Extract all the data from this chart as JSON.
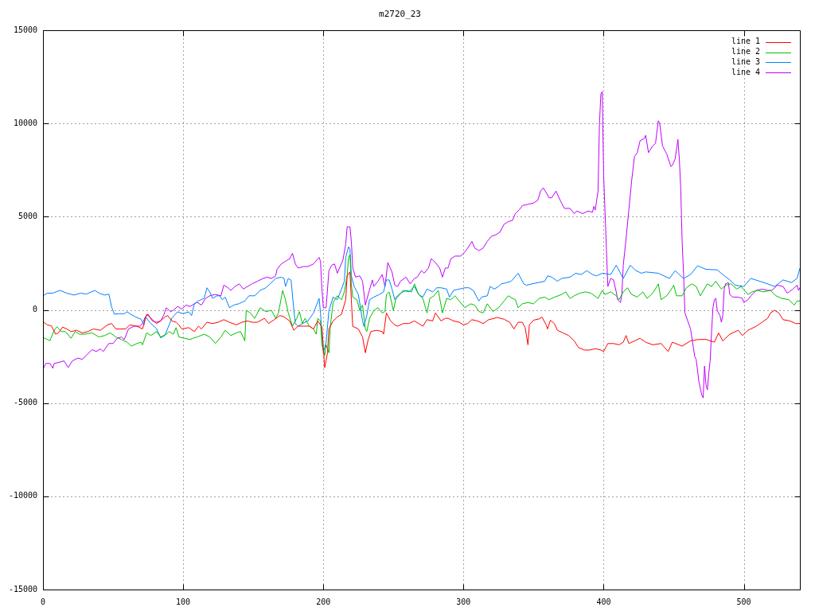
{
  "chart_data": {
    "type": "line",
    "title": "m2720_23",
    "xlim": [
      0,
      540
    ],
    "ylim": [
      -15000,
      15000
    ],
    "xticks": [
      0,
      100,
      200,
      300,
      400,
      500
    ],
    "yticks": [
      -15000,
      -10000,
      -5000,
      0,
      5000,
      10000,
      15000
    ],
    "grid": true,
    "legend": "top right",
    "series": [
      {
        "name": "line 1",
        "color": "#ff0000",
        "x": [
          0,
          3,
          6,
          9,
          11,
          14,
          17,
          20,
          24,
          28,
          32,
          36,
          41,
          46,
          49,
          52,
          55,
          59,
          62,
          67,
          71,
          74,
          76,
          79,
          81,
          84,
          87,
          89,
          92,
          95,
          97,
          99,
          104,
          108,
          111,
          113,
          117,
          121,
          125,
          129,
          133,
          138,
          142,
          146,
          149,
          153,
          158,
          161,
          165,
          169,
          172,
          176,
          179,
          182,
          186,
          190,
          193,
          196,
          199,
          200,
          201,
          203,
          204,
          207,
          210,
          213,
          216,
          217,
          219,
          220,
          221,
          225,
          228,
          230,
          232,
          234,
          238,
          242,
          243,
          245,
          248,
          251,
          253,
          257,
          261,
          265,
          268,
          271,
          274,
          278,
          280,
          284,
          287,
          289,
          293,
          297,
          300,
          303,
          306,
          310,
          314,
          318,
          322,
          324,
          329,
          333,
          336,
          339,
          342,
          344,
          346,
          347,
          350,
          354,
          356,
          359,
          360,
          362,
          365,
          367,
          371,
          375,
          379,
          382,
          386,
          390,
          394,
          398,
          400,
          403,
          407,
          411,
          414,
          416,
          418,
          422,
          426,
          430,
          435,
          441,
          446,
          449,
          456,
          462,
          467,
          473,
          479,
          482,
          485,
          490,
          496,
          499,
          503,
          509,
          513,
          517,
          519,
          522,
          525,
          528,
          533,
          537,
          540
        ],
        "values": [
          -630,
          -800,
          -850,
          -1300,
          -1230,
          -920,
          -1020,
          -1160,
          -1090,
          -1230,
          -1160,
          -1020,
          -1090,
          -800,
          -730,
          -1020,
          -1020,
          -1020,
          -800,
          -870,
          -1020,
          -230,
          -370,
          -590,
          -730,
          -590,
          -370,
          -300,
          -590,
          -660,
          -800,
          -1020,
          -950,
          -1160,
          -870,
          -1020,
          -660,
          -730,
          -660,
          -520,
          -660,
          -800,
          -660,
          -590,
          -660,
          -660,
          -450,
          -730,
          -520,
          -300,
          -370,
          -590,
          -1090,
          -870,
          -870,
          -870,
          -1020,
          -590,
          -900,
          -2010,
          -3100,
          -2300,
          -1020,
          -590,
          -380,
          -230,
          550,
          1830,
          2040,
          550,
          -880,
          -1020,
          -1450,
          -2300,
          -1590,
          -1160,
          -1090,
          -1160,
          -1300,
          -160,
          -590,
          -800,
          -870,
          -730,
          -730,
          -590,
          -730,
          -870,
          -520,
          -590,
          -160,
          -590,
          -450,
          -450,
          -590,
          -660,
          -800,
          -730,
          -520,
          -590,
          -730,
          -520,
          -450,
          -400,
          -500,
          -660,
          -1020,
          -660,
          -660,
          -950,
          -1870,
          -800,
          -550,
          -480,
          -380,
          -800,
          -1020,
          -550,
          -750,
          -1090,
          -1230,
          -1370,
          -1660,
          -2010,
          -2150,
          -2150,
          -2080,
          -2150,
          -2230,
          -1800,
          -1800,
          -1870,
          -1730,
          -1370,
          -1800,
          -1660,
          -1520,
          -1730,
          -1870,
          -1800,
          -2230,
          -1730,
          -1940,
          -1660,
          -1590,
          -1580,
          -1730,
          -1230,
          -1660,
          -1300,
          -1090,
          -1370,
          -1090,
          -870,
          -660,
          -450,
          -160,
          -20,
          -160,
          -520,
          -590,
          -730,
          -730
        ]
      },
      {
        "name": "line 2",
        "color": "#00c000",
        "x": [
          0,
          5,
          8,
          10,
          13,
          16,
          20,
          23,
          26,
          30,
          35,
          40,
          44,
          48,
          52,
          56,
          60,
          63,
          67,
          70,
          71,
          74,
          77,
          81,
          84,
          88,
          90,
          93,
          95,
          97,
          101,
          105,
          107,
          110,
          115,
          119,
          123,
          127,
          130,
          134,
          138,
          141,
          144,
          145,
          148,
          151,
          155,
          159,
          163,
          166,
          168,
          171,
          173,
          175,
          178,
          181,
          183,
          185,
          187,
          190,
          193,
          195,
          196,
          198,
          199,
          201,
          202,
          204,
          205,
          207,
          210,
          213,
          215,
          217,
          218,
          219,
          220,
          221,
          224,
          226,
          228,
          230,
          231,
          233,
          236,
          239,
          242,
          244,
          245,
          247,
          250,
          252,
          255,
          259,
          263,
          265,
          268,
          271,
          274,
          276,
          279,
          282,
          285,
          288,
          291,
          294,
          297,
          301,
          305,
          308,
          311,
          314,
          317,
          321,
          325,
          329,
          332,
          335,
          337,
          339,
          342,
          346,
          350,
          354,
          358,
          361,
          365,
          370,
          373,
          376,
          379,
          383,
          387,
          391,
          396,
          399,
          401,
          405,
          409,
          411,
          414,
          417,
          420,
          424,
          428,
          431,
          435,
          438,
          439,
          441,
          445,
          449,
          450,
          452,
          456,
          459,
          463,
          466,
          469,
          474,
          477,
          480,
          484,
          487,
          491,
          495,
          498,
          503,
          506,
          510,
          514,
          519,
          523,
          527,
          532,
          536,
          538,
          540
        ],
        "values": [
          -1470,
          -1650,
          -1090,
          -900,
          -1160,
          -1160,
          -1520,
          -1160,
          -1300,
          -1300,
          -1230,
          -1450,
          -1370,
          -1230,
          -1450,
          -1590,
          -1730,
          -1940,
          -1800,
          -1730,
          -1870,
          -1230,
          -1370,
          -1160,
          -1450,
          -1300,
          -1160,
          -1300,
          -950,
          -1450,
          -1520,
          -1590,
          -1520,
          -1450,
          -1300,
          -1450,
          -1800,
          -1450,
          -1090,
          -1370,
          -1230,
          -1160,
          -1660,
          -20,
          -160,
          -450,
          120,
          -90,
          -20,
          -450,
          -160,
          1050,
          550,
          -160,
          -870,
          -450,
          -90,
          -730,
          -450,
          -870,
          -1020,
          -1300,
          -450,
          -590,
          -1870,
          -2440,
          -1870,
          -2300,
          -880,
          400,
          760,
          550,
          970,
          1830,
          2820,
          2970,
          1400,
          690,
          550,
          -30,
          260,
          -1020,
          -1160,
          -450,
          -30,
          120,
          -160,
          -90,
          830,
          970,
          -30,
          690,
          900,
          1050,
          970,
          1400,
          830,
          620,
          -160,
          620,
          760,
          1050,
          -160,
          620,
          550,
          760,
          480,
          120,
          330,
          260,
          -80,
          -160,
          330,
          -80,
          120,
          480,
          760,
          620,
          550,
          120,
          330,
          400,
          330,
          620,
          690,
          550,
          690,
          830,
          970,
          620,
          760,
          900,
          970,
          900,
          620,
          1050,
          830,
          970,
          760,
          550,
          970,
          1190,
          830,
          690,
          970,
          620,
          900,
          1260,
          1400,
          550,
          760,
          1190,
          1330,
          760,
          760,
          1190,
          1400,
          1260,
          760,
          1400,
          1260,
          1540,
          1120,
          1330,
          1400,
          1120,
          1260,
          830,
          970,
          1050,
          970,
          1050,
          760,
          620,
          550,
          260,
          480,
          480
        ]
      },
      {
        "name": "line 3",
        "color": "#0080ff",
        "x": [
          0,
          3,
          7,
          12,
          17,
          22,
          27,
          31,
          37,
          40,
          44,
          47,
          49,
          51,
          54,
          58,
          60,
          63,
          66,
          70,
          72,
          73,
          77,
          81,
          84,
          87,
          90,
          92,
          96,
          100,
          104,
          106,
          108,
          111,
          115,
          117,
          119,
          121,
          124,
          126,
          128,
          130,
          133,
          136,
          140,
          144,
          147,
          151,
          155,
          159,
          162,
          166,
          170,
          172,
          173,
          175,
          177,
          179,
          180,
          182,
          185,
          189,
          193,
          197,
          198,
          199,
          200,
          202,
          204,
          207,
          210,
          213,
          215,
          216,
          218,
          219,
          220,
          222,
          225,
          228,
          229,
          231,
          233,
          236,
          240,
          243,
          245,
          247,
          249,
          251,
          253,
          257,
          261,
          265,
          268,
          271,
          274,
          278,
          281,
          284,
          288,
          290,
          293,
          297,
          301,
          304,
          307,
          311,
          313,
          317,
          319,
          322,
          325,
          327,
          330,
          334,
          339,
          343,
          345,
          352,
          358,
          360,
          363,
          367,
          370,
          376,
          380,
          384,
          388,
          392,
          395,
          399,
          405,
          409,
          414,
          419,
          423,
          427,
          430,
          439,
          447,
          451,
          457,
          462,
          467,
          473,
          481,
          485,
          490,
          494,
          500,
          505,
          511,
          517,
          522,
          528,
          534,
          538,
          540
        ],
        "values": [
          760,
          900,
          900,
          1050,
          900,
          800,
          900,
          850,
          1050,
          900,
          800,
          850,
          150,
          -230,
          -200,
          -200,
          -100,
          -250,
          -370,
          -500,
          -800,
          -370,
          -730,
          -1000,
          -1500,
          -1360,
          -800,
          -430,
          -100,
          -200,
          -100,
          -300,
          330,
          490,
          620,
          1190,
          970,
          620,
          760,
          760,
          550,
          690,
          120,
          260,
          340,
          480,
          760,
          760,
          1050,
          1190,
          1400,
          1690,
          1760,
          1690,
          1260,
          1690,
          1600,
          -20,
          -730,
          -870,
          -730,
          -590,
          -160,
          620,
          -160,
          -1430,
          -2300,
          -1730,
          -30,
          690,
          550,
          1120,
          1540,
          2820,
          3390,
          3250,
          1830,
          1260,
          830,
          -590,
          -880,
          -310,
          550,
          690,
          830,
          970,
          1610,
          1610,
          1120,
          550,
          690,
          1050,
          970,
          1260,
          830,
          690,
          1120,
          970,
          1190,
          1190,
          1120,
          690,
          1050,
          1120,
          1190,
          1190,
          1050,
          480,
          690,
          760,
          1260,
          1120,
          1260,
          1400,
          1450,
          1540,
          1970,
          1400,
          1330,
          1450,
          1540,
          1830,
          1760,
          1540,
          1690,
          1760,
          1970,
          1900,
          2110,
          1900,
          1830,
          1970,
          1900,
          2400,
          1690,
          2400,
          2110,
          1970,
          2040,
          1970,
          1690,
          2110,
          1690,
          1900,
          2370,
          2180,
          2150,
          1900,
          1610,
          1330,
          1260,
          1690,
          1550,
          1400,
          1260,
          1610,
          1470,
          1690,
          2230
        ]
      },
      {
        "name": "line 4",
        "color": "#c000ff",
        "x": [
          0,
          2,
          5,
          7,
          8,
          12,
          15,
          18,
          21,
          25,
          28,
          31,
          35,
          38,
          41,
          43,
          47,
          50,
          53,
          56,
          58,
          61,
          65,
          69,
          71,
          73,
          75,
          78,
          81,
          84,
          86,
          88,
          91,
          93,
          96,
          99,
          102,
          105,
          108,
          110,
          113,
          116,
          119,
          123,
          127,
          129,
          132,
          134,
          137,
          140,
          143,
          146,
          149,
          153,
          157,
          160,
          163,
          166,
          167,
          170,
          173,
          176,
          178,
          180,
          182,
          186,
          189,
          193,
          197,
          198,
          199,
          200,
          202,
          204,
          206,
          208,
          210,
          212,
          214,
          216,
          217,
          219,
          220,
          221,
          223,
          226,
          228,
          230,
          232,
          235,
          236,
          239,
          242,
          244,
          246,
          249,
          251,
          253,
          255,
          259,
          262,
          265,
          267,
          270,
          272,
          275,
          277,
          280,
          283,
          285,
          287,
          289,
          291,
          294,
          298,
          301,
          303,
          306,
          308,
          311,
          314,
          317,
          320,
          323,
          326,
          329,
          332,
          335,
          337,
          340,
          342,
          346,
          350,
          353,
          355,
          357,
          360,
          361,
          363,
          366,
          369,
          372,
          376,
          379,
          381,
          385,
          389,
          392,
          393,
          394,
          396,
          397,
          398,
          399,
          400,
          401,
          402,
          403,
          405,
          407,
          409,
          410,
          412,
          413,
          414,
          416,
          418,
          420,
          422,
          424,
          426,
          429,
          430,
          432,
          435,
          437,
          439,
          440,
          442,
          445,
          448,
          449,
          451,
          453,
          454,
          455,
          456,
          457,
          458,
          460,
          462,
          464,
          465,
          466,
          468,
          470,
          471,
          472,
          473,
          474,
          475,
          476,
          477,
          478,
          479,
          480,
          481,
          483,
          484,
          485,
          486,
          487,
          489,
          490,
          492,
          496,
          499,
          500,
          503,
          505,
          509,
          513,
          517,
          520,
          524,
          528,
          531,
          535,
          538,
          539,
          540
        ],
        "values": [
          -3180,
          -2870,
          -2870,
          -3130,
          -2870,
          -2800,
          -2730,
          -3090,
          -2730,
          -2580,
          -2650,
          -2440,
          -2130,
          -2230,
          -2090,
          -2230,
          -1800,
          -1800,
          -1520,
          -1450,
          -1590,
          -1020,
          -870,
          -870,
          -730,
          -370,
          -230,
          -590,
          -660,
          -590,
          -300,
          120,
          -90,
          -20,
          190,
          50,
          260,
          190,
          330,
          410,
          260,
          620,
          760,
          830,
          760,
          1330,
          1190,
          1050,
          1260,
          1400,
          1120,
          1260,
          1400,
          1540,
          1690,
          1760,
          1690,
          1830,
          2180,
          2470,
          2610,
          2750,
          3040,
          2470,
          2250,
          2330,
          2330,
          2470,
          2820,
          2610,
          1120,
          120,
          120,
          2110,
          2400,
          2470,
          1970,
          2330,
          2680,
          3540,
          4460,
          4460,
          3680,
          2260,
          1760,
          1830,
          1540,
          260,
          830,
          1610,
          1260,
          1540,
          1900,
          1260,
          2540,
          2040,
          1330,
          1260,
          1540,
          1760,
          1400,
          1690,
          1760,
          2110,
          1970,
          2250,
          2750,
          2540,
          2250,
          1760,
          2250,
          2250,
          2750,
          2890,
          2890,
          3110,
          3320,
          3680,
          3320,
          3180,
          3320,
          3680,
          3960,
          4030,
          4170,
          4600,
          4740,
          4810,
          5170,
          5390,
          5600,
          5670,
          5740,
          5880,
          6380,
          6550,
          6170,
          6020,
          6020,
          6380,
          5880,
          5450,
          5450,
          5170,
          5310,
          5170,
          5310,
          5240,
          5560,
          5360,
          6380,
          9940,
          11580,
          11720,
          7230,
          5240,
          3250,
          1260,
          1690,
          1620,
          970,
          550,
          400,
          830,
          2400,
          3820,
          5390,
          6950,
          8230,
          8440,
          9080,
          9200,
          9370,
          8440,
          8800,
          8940,
          10150,
          10010,
          8800,
          8370,
          7690,
          7760,
          8100,
          9150,
          8100,
          6520,
          3680,
          1970,
          -160,
          -590,
          -1020,
          -2010,
          -2510,
          -2650,
          -3860,
          -4570,
          -4720,
          -3010,
          -4000,
          -4290,
          -3400,
          -2720,
          -1160,
          120,
          550,
          620,
          -20,
          -300,
          -660,
          -300,
          1120,
          1400,
          1470,
          830,
          690,
          690,
          620,
          400,
          550,
          760,
          1050,
          1120,
          1050,
          1050,
          1330,
          1260,
          900,
          1120,
          1330,
          1050,
          1190
        ]
      }
    ]
  }
}
